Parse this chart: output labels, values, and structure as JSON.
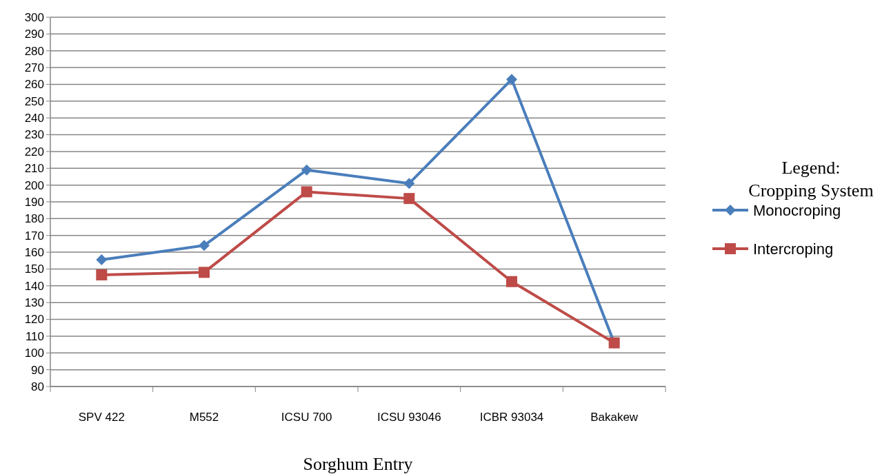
{
  "chart_data": {
    "type": "line",
    "xlabel": "Sorghum Entry",
    "legend_title": "Legend:\nCropping System",
    "legend": "right",
    "grid": "y",
    "categories": [
      "SPV 422",
      "M552",
      "ICSU 700",
      "ICSU 93046",
      "ICBR 93034",
      "Bakakew"
    ],
    "ylim": [
      80,
      300
    ],
    "yticks": [
      80,
      90,
      100,
      110,
      120,
      130,
      140,
      150,
      160,
      170,
      180,
      190,
      200,
      210,
      220,
      230,
      240,
      250,
      260,
      270,
      280,
      290,
      300
    ],
    "series": [
      {
        "name": "Monocroping",
        "color": "#4a7ebb",
        "marker": "diamond",
        "values": [
          155.5,
          164,
          209,
          201,
          263,
          106
        ]
      },
      {
        "name": "Intercroping",
        "color": "#be4b48",
        "marker": "square",
        "values": [
          146.5,
          148,
          196,
          192,
          142.5,
          106
        ]
      }
    ]
  }
}
